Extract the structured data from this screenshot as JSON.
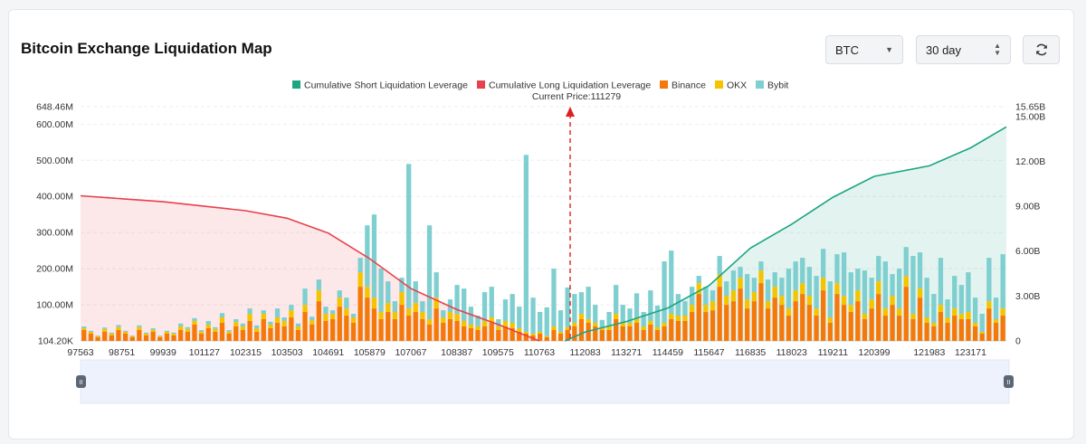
{
  "header": {
    "title": "Bitcoin Exchange Liquidation Map",
    "symbol_select": "BTC",
    "period_select": "30 day",
    "refresh_icon": "refresh-icon"
  },
  "colors": {
    "short_cumulative": "#1ca582",
    "long_cumulative": "#e8404c",
    "binance": "#f5780a",
    "okx": "#f5c400",
    "bybit": "#7fcfd0",
    "current_price_line": "#e02020"
  },
  "chart_data": {
    "type": "bar",
    "title": "",
    "current_price_label": "Current Price:111279",
    "current_price": 111279,
    "legend": [
      "Cumulative Short Liquidation Leverage",
      "Cumulative Long Liquidation Leverage",
      "Binance",
      "OKX",
      "Bybit"
    ],
    "legend_position": "top-center",
    "stacked": true,
    "x_tick_labels": [
      "97563",
      "98751",
      "99939",
      "101127",
      "102315",
      "103503",
      "104691",
      "105879",
      "107067",
      "108387",
      "109575",
      "110763",
      "112083",
      "113271",
      "114459",
      "115647",
      "116835",
      "118023",
      "119211",
      "120399",
      "121983",
      "123171"
    ],
    "x_range": [
      97563,
      124200
    ],
    "y_left_tick_labels": [
      "104.20K",
      "100.00M",
      "200.00M",
      "300.00M",
      "400.00M",
      "500.00M",
      "600.00M",
      "648.46M"
    ],
    "y_left_range": [
      0,
      648460000
    ],
    "y_right_tick_labels": [
      "0",
      "3.00B",
      "6.00B",
      "9.00B",
      "12.00B",
      "15.00B",
      "15.65B"
    ],
    "y_right_range": [
      0,
      15650000000
    ],
    "grid": true,
    "series": [
      {
        "name": "Cumulative Long Liquidation Leverage",
        "axis": "right",
        "x": [
          97563,
          98751,
          99939,
          101127,
          102315,
          103503,
          104691,
          105879,
          107067,
          108387,
          109575,
          110763
        ],
        "values": [
          9700000000,
          9500000000,
          9300000000,
          9000000000,
          8700000000,
          8200000000,
          7200000000,
          5500000000,
          3500000000,
          2100000000,
          1100000000,
          0
        ]
      },
      {
        "name": "Cumulative Short Liquidation Leverage",
        "axis": "right",
        "x": [
          111500,
          112083,
          113271,
          114459,
          115647,
          116835,
          118023,
          119211,
          120399,
          121983,
          123171,
          124200
        ],
        "values": [
          0,
          600000000,
          1300000000,
          2200000000,
          3700000000,
          6200000000,
          7800000000,
          9600000000,
          11000000000,
          11700000000,
          12900000000,
          14300000000
        ]
      }
    ],
    "bar_x_range": [
      97563,
      124200
    ],
    "bar_values_binance": [
      30000000,
      20000000,
      10000000,
      25000000,
      15000000,
      30000000,
      20000000,
      10000000,
      30000000,
      15000000,
      25000000,
      10000000,
      20000000,
      15000000,
      30000000,
      25000000,
      45000000,
      20000000,
      35000000,
      25000000,
      50000000,
      20000000,
      40000000,
      30000000,
      55000000,
      25000000,
      60000000,
      35000000,
      50000000,
      40000000,
      65000000,
      30000000,
      80000000,
      45000000,
      110000000,
      55000000,
      60000000,
      95000000,
      70000000,
      50000000,
      150000000,
      120000000,
      90000000,
      60000000,
      80000000,
      60000000,
      100000000,
      70000000,
      80000000,
      60000000,
      45000000,
      90000000,
      50000000,
      60000000,
      55000000,
      40000000,
      35000000,
      30000000,
      40000000,
      50000000,
      30000000,
      40000000,
      35000000,
      25000000,
      20000000,
      15000000,
      20000000,
      10000000,
      30000000,
      20000000,
      30000000,
      40000000,
      60000000,
      50000000,
      40000000,
      30000000,
      30000000,
      60000000,
      40000000,
      40000000,
      50000000,
      30000000,
      45000000,
      30000000,
      40000000,
      60000000,
      55000000,
      55000000,
      80000000,
      130000000,
      80000000,
      85000000,
      150000000,
      100000000,
      110000000,
      145000000,
      90000000,
      110000000,
      160000000,
      90000000,
      120000000,
      100000000,
      70000000,
      110000000,
      130000000,
      100000000,
      70000000,
      140000000,
      50000000,
      130000000,
      100000000,
      80000000,
      110000000,
      60000000,
      90000000,
      130000000,
      70000000,
      100000000,
      70000000,
      150000000,
      60000000,
      120000000,
      50000000,
      40000000,
      80000000,
      50000000,
      70000000,
      60000000,
      60000000,
      40000000,
      20000000,
      90000000,
      50000000,
      70000000
    ],
    "bar_values_okx": [
      5000000,
      5000000,
      3000000,
      8000000,
      5000000,
      8000000,
      5000000,
      3000000,
      8000000,
      5000000,
      6000000,
      3000000,
      5000000,
      5000000,
      10000000,
      8000000,
      10000000,
      6000000,
      10000000,
      8000000,
      15000000,
      6000000,
      12000000,
      10000000,
      20000000,
      10000000,
      15000000,
      10000000,
      15000000,
      15000000,
      20000000,
      10000000,
      20000000,
      12000000,
      30000000,
      20000000,
      15000000,
      25000000,
      20000000,
      15000000,
      40000000,
      30000000,
      30000000,
      20000000,
      25000000,
      20000000,
      35000000,
      20000000,
      25000000,
      20000000,
      15000000,
      30000000,
      15000000,
      20000000,
      20000000,
      15000000,
      10000000,
      10000000,
      15000000,
      15000000,
      10000000,
      15000000,
      15000000,
      10000000,
      5000000,
      5000000,
      5000000,
      3000000,
      10000000,
      5000000,
      8000000,
      10000000,
      15000000,
      10000000,
      10000000,
      8000000,
      10000000,
      15000000,
      10000000,
      10000000,
      12000000,
      10000000,
      10000000,
      8000000,
      10000000,
      15000000,
      15000000,
      15000000,
      20000000,
      30000000,
      20000000,
      25000000,
      35000000,
      25000000,
      30000000,
      30000000,
      25000000,
      25000000,
      35000000,
      20000000,
      30000000,
      25000000,
      20000000,
      30000000,
      30000000,
      25000000,
      20000000,
      35000000,
      15000000,
      30000000,
      25000000,
      20000000,
      30000000,
      15000000,
      25000000,
      35000000,
      20000000,
      25000000,
      20000000,
      30000000,
      15000000,
      25000000,
      15000000,
      10000000,
      20000000,
      15000000,
      20000000,
      15000000,
      20000000,
      10000000,
      5000000,
      20000000,
      10000000,
      20000000
    ],
    "bar_values_bybit": [
      5000000,
      3000000,
      2000000,
      4000000,
      3000000,
      6000000,
      3000000,
      2000000,
      5000000,
      3000000,
      4000000,
      2000000,
      3000000,
      3000000,
      8000000,
      5000000,
      8000000,
      4000000,
      10000000,
      5000000,
      12000000,
      4000000,
      8000000,
      8000000,
      15000000,
      8000000,
      10000000,
      8000000,
      25000000,
      10000000,
      15000000,
      8000000,
      45000000,
      10000000,
      30000000,
      20000000,
      10000000,
      20000000,
      30000000,
      10000000,
      40000000,
      170000000,
      230000000,
      120000000,
      60000000,
      30000000,
      40000000,
      400000000,
      60000000,
      30000000,
      260000000,
      70000000,
      20000000,
      35000000,
      80000000,
      90000000,
      50000000,
      30000000,
      80000000,
      85000000,
      20000000,
      60000000,
      80000000,
      60000000,
      490000000,
      100000000,
      55000000,
      80000000,
      160000000,
      60000000,
      110000000,
      80000000,
      60000000,
      90000000,
      50000000,
      20000000,
      40000000,
      80000000,
      50000000,
      40000000,
      70000000,
      40000000,
      85000000,
      60000000,
      170000000,
      175000000,
      60000000,
      40000000,
      50000000,
      20000000,
      50000000,
      30000000,
      50000000,
      40000000,
      55000000,
      30000000,
      70000000,
      40000000,
      25000000,
      60000000,
      40000000,
      50000000,
      110000000,
      80000000,
      70000000,
      80000000,
      90000000,
      80000000,
      100000000,
      80000000,
      120000000,
      90000000,
      60000000,
      120000000,
      60000000,
      70000000,
      130000000,
      60000000,
      110000000,
      80000000,
      160000000,
      100000000,
      110000000,
      80000000,
      130000000,
      50000000,
      90000000,
      80000000,
      110000000,
      70000000,
      50000000,
      120000000,
      60000000,
      150000000
    ]
  },
  "range_slider": {
    "left_handle": "II",
    "right_handle": "II"
  }
}
